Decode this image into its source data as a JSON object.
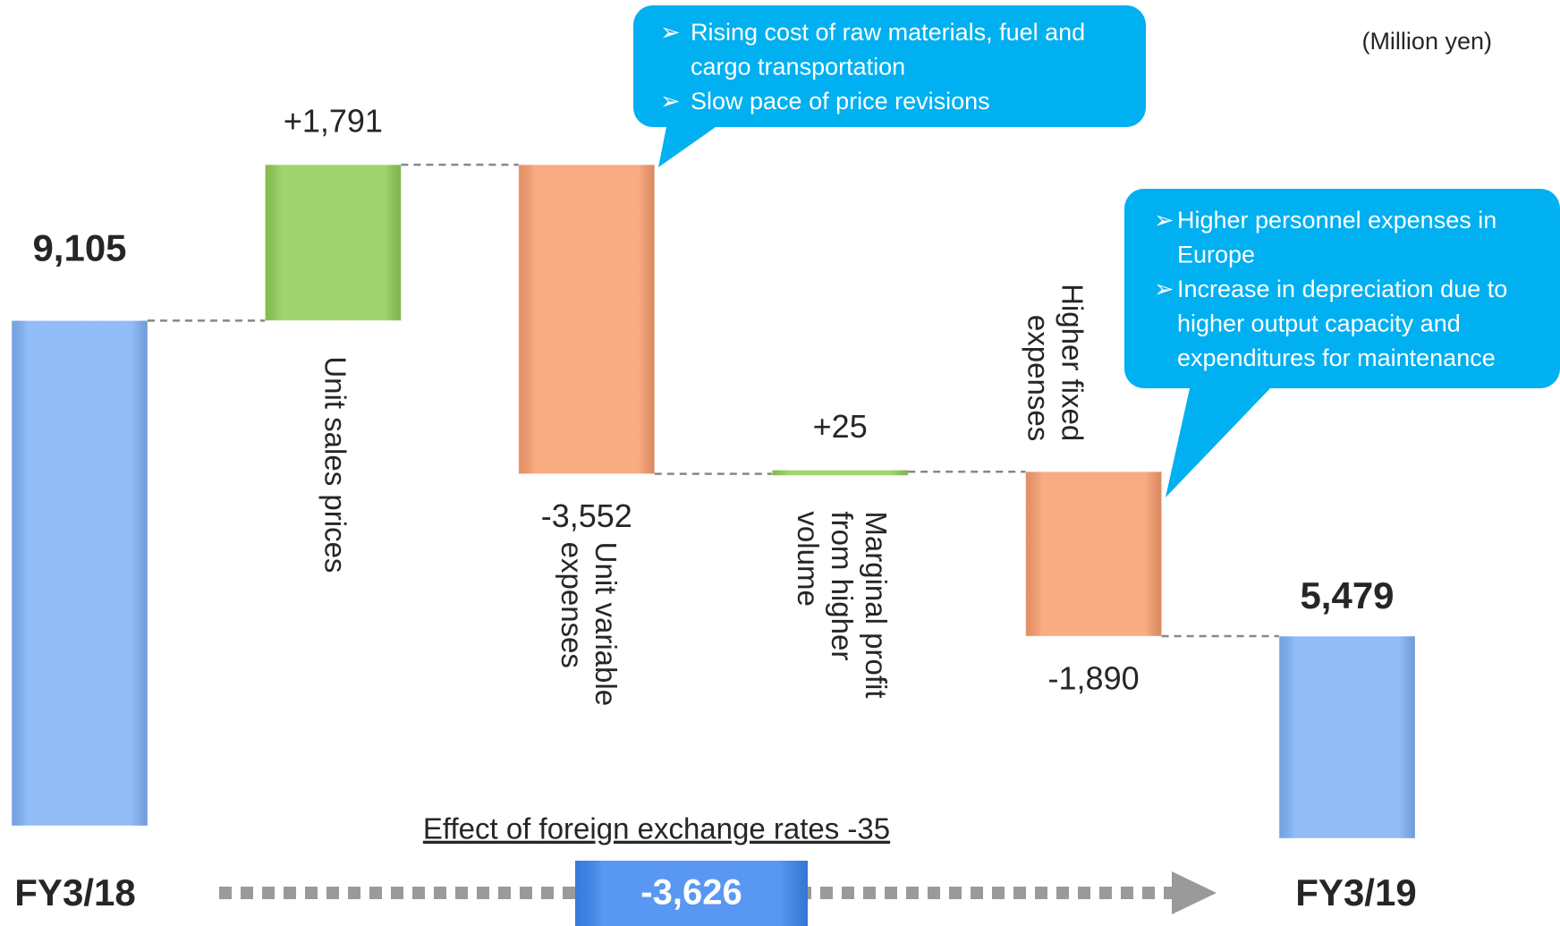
{
  "chart_data": {
    "type": "waterfall",
    "unit": "(Million yen)",
    "categories": [
      "FY3/18",
      "Unit sales prices",
      "Unit variable expenses",
      "Marginal profit from higher volume",
      "Higher fixed expenses",
      "FY3/19"
    ],
    "values": [
      9105,
      1791,
      -3552,
      25,
      -1890,
      5479
    ],
    "value_labels": [
      "9,105",
      "+1,791",
      "-3,552",
      "+25",
      "-1,890",
      "5,479"
    ],
    "totals": [
      true,
      false,
      false,
      false,
      false,
      true
    ],
    "colors": {
      "total": "#7eb1f6",
      "increase": "#8fcc55",
      "decrease": "#f89c6c",
      "callout": "#00b0f0",
      "change": "#3a86f0"
    },
    "ylim": [
      3300,
      11000
    ],
    "footnote": "Effect of foreign exchange rates -35",
    "change_label": "-3,626",
    "callouts": [
      {
        "bullet": "➢",
        "items": [
          [
            "Rising cost of raw materials, fuel and",
            "cargo transportation"
          ],
          [
            "Slow pace of price revisions"
          ]
        ]
      },
      {
        "bullet": "➢",
        "items": [
          [
            "Higher personnel expenses in",
            "Europe"
          ],
          [
            "Increase in depreciation due to",
            "higher output capacity and",
            "expenditures for maintenance"
          ]
        ]
      }
    ]
  }
}
